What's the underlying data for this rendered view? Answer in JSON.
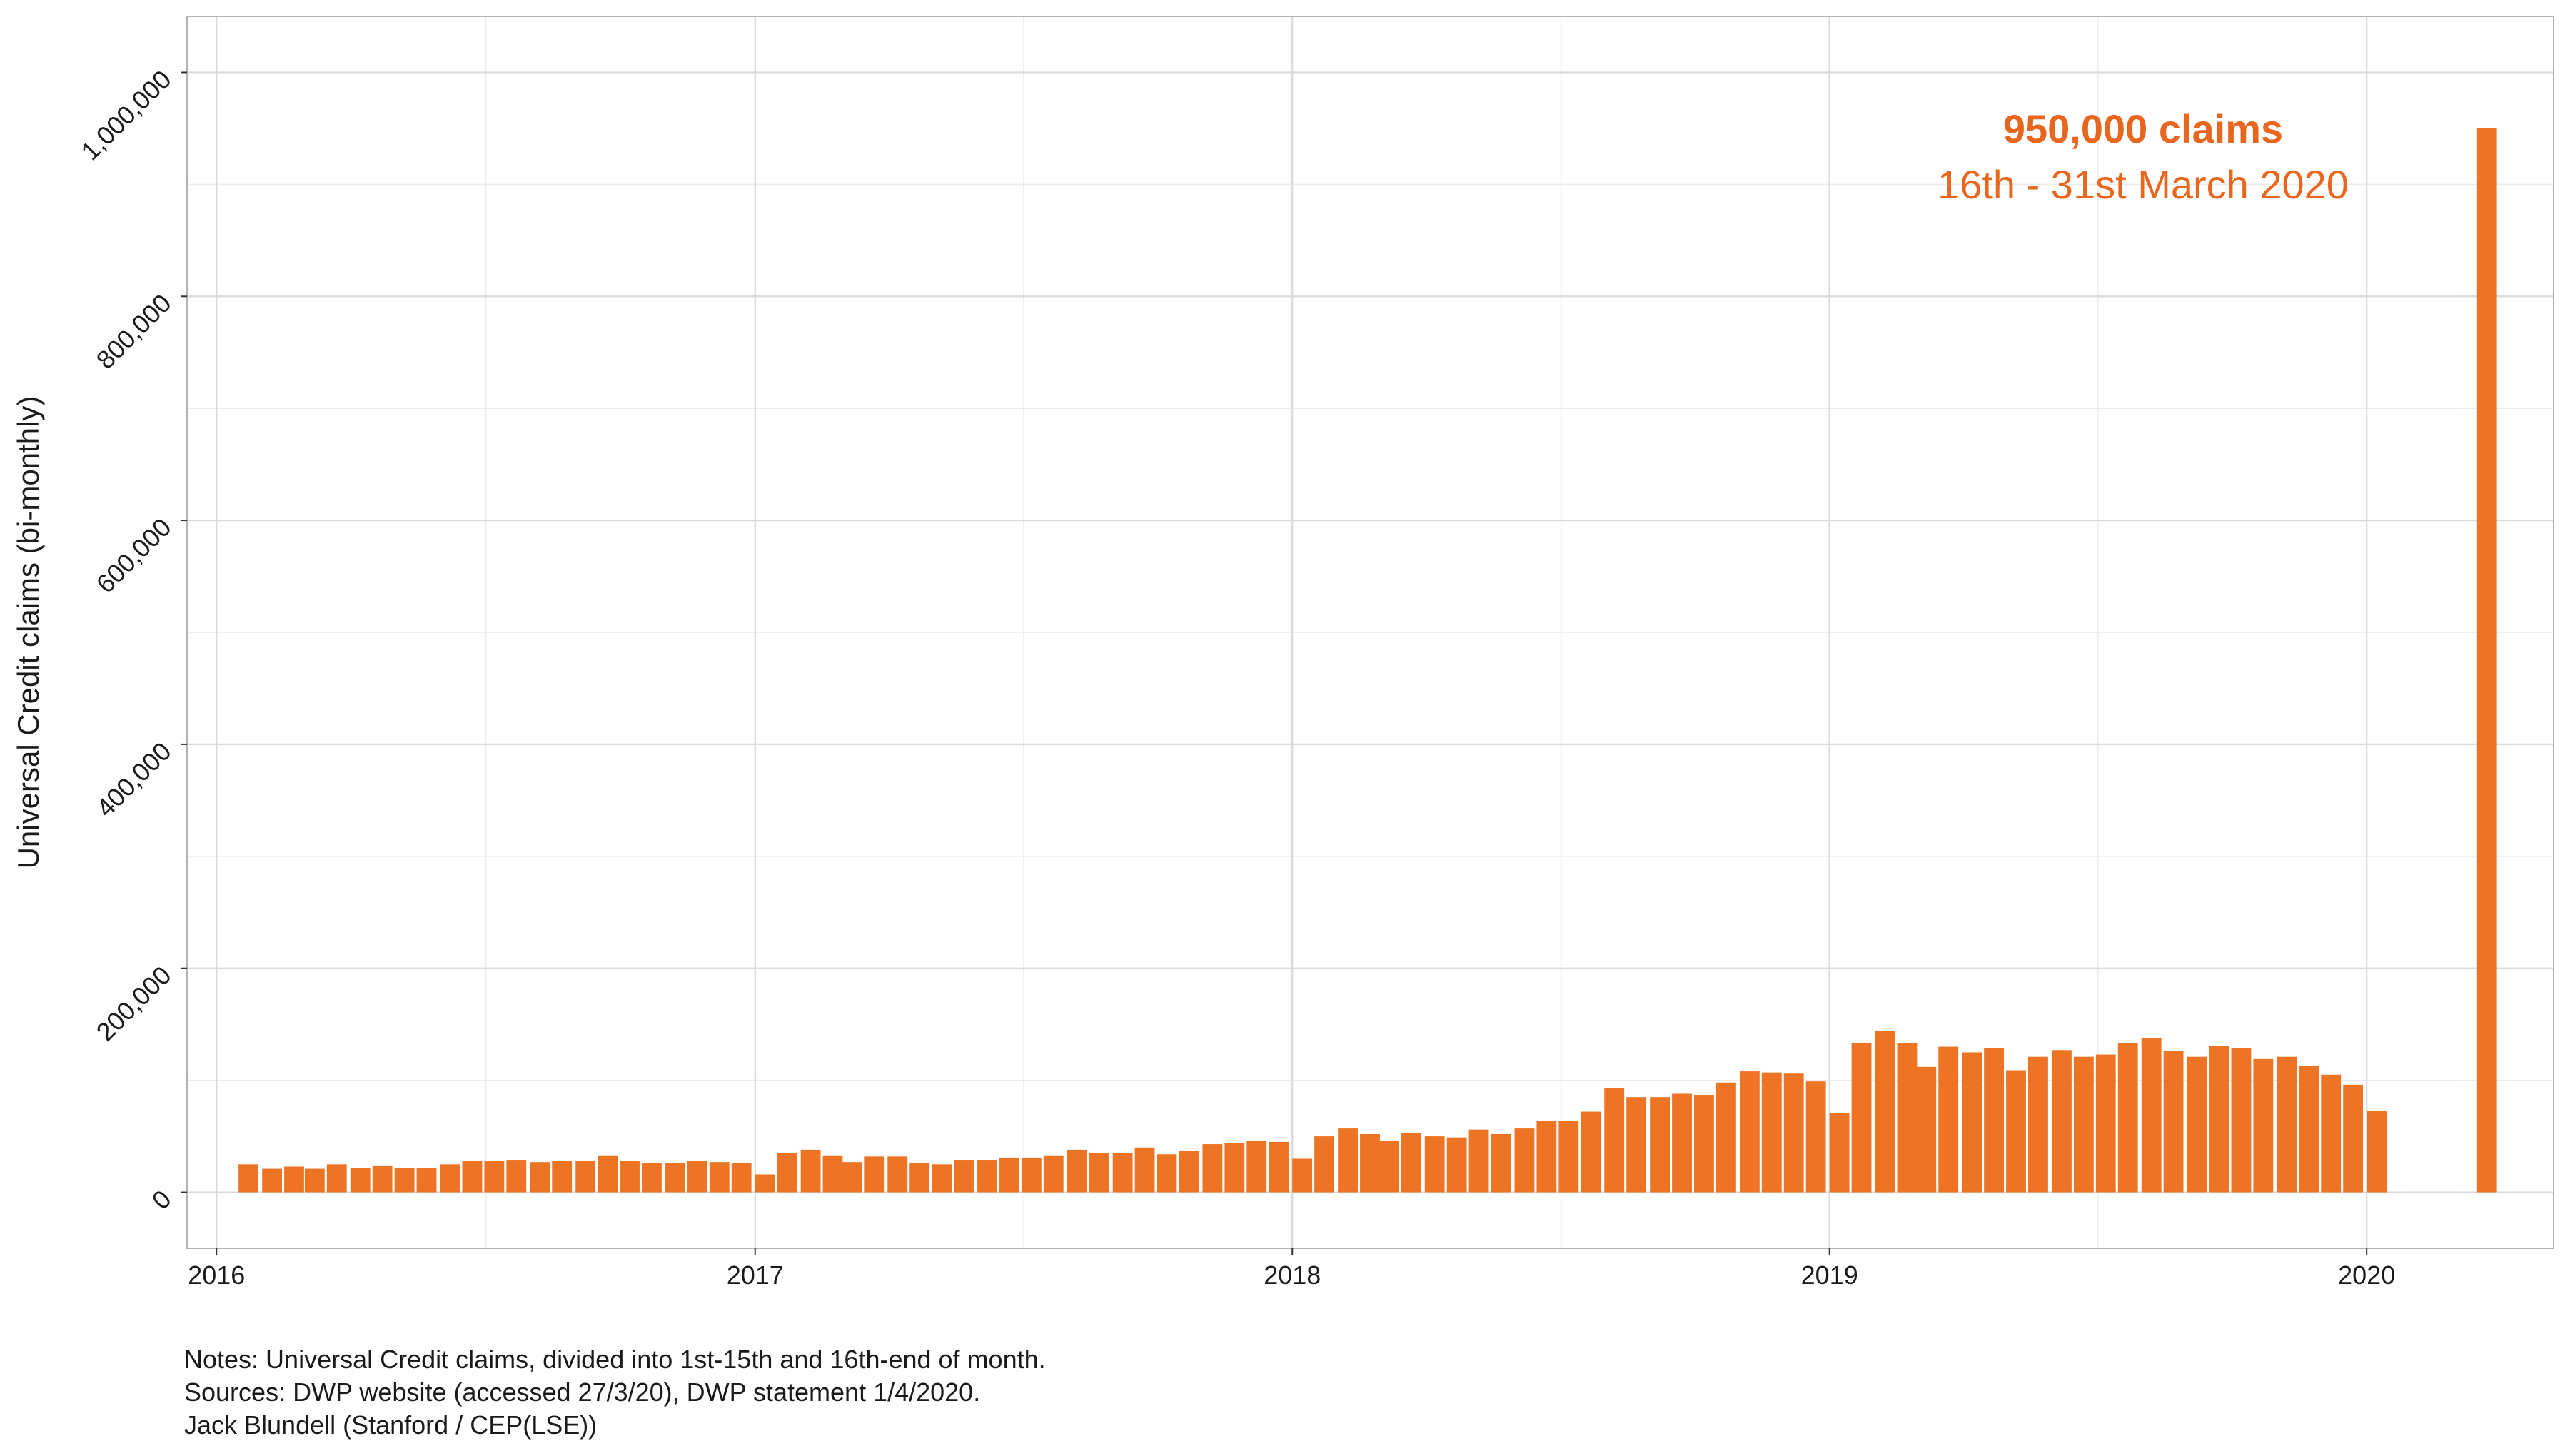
{
  "chart_data": {
    "type": "bar",
    "ylabel": "Universal Credit claims (bi-monthly)",
    "xlabel": "",
    "x_ticks": [
      "2016",
      "2017",
      "2018",
      "2019",
      "2020"
    ],
    "y_ticks": [
      "0",
      "200,000",
      "400,000",
      "600,000",
      "800,000",
      "1,000,000"
    ],
    "xlim": [
      "2015-12-12",
      "2020-05-07"
    ],
    "ylim": [
      -50000,
      1050000
    ],
    "grid": true,
    "bar_color": "#EC7424",
    "bars": [
      {
        "date": "2016-01-16",
        "value": 25000
      },
      {
        "date": "2016-02-01",
        "value": 21000
      },
      {
        "date": "2016-02-16",
        "value": 23000
      },
      {
        "date": "2016-03-01",
        "value": 21000
      },
      {
        "date": "2016-03-16",
        "value": 25000
      },
      {
        "date": "2016-04-01",
        "value": 22000
      },
      {
        "date": "2016-04-16",
        "value": 24000
      },
      {
        "date": "2016-05-01",
        "value": 22000
      },
      {
        "date": "2016-05-16",
        "value": 22000
      },
      {
        "date": "2016-06-01",
        "value": 25000
      },
      {
        "date": "2016-06-16",
        "value": 28000
      },
      {
        "date": "2016-07-01",
        "value": 28000
      },
      {
        "date": "2016-07-16",
        "value": 29000
      },
      {
        "date": "2016-08-01",
        "value": 27000
      },
      {
        "date": "2016-08-16",
        "value": 28000
      },
      {
        "date": "2016-09-01",
        "value": 28000
      },
      {
        "date": "2016-09-16",
        "value": 33000
      },
      {
        "date": "2016-10-01",
        "value": 28000
      },
      {
        "date": "2016-10-16",
        "value": 26000
      },
      {
        "date": "2016-11-01",
        "value": 26000
      },
      {
        "date": "2016-11-16",
        "value": 28000
      },
      {
        "date": "2016-12-01",
        "value": 27000
      },
      {
        "date": "2016-12-16",
        "value": 26000
      },
      {
        "date": "2017-01-01",
        "value": 16000
      },
      {
        "date": "2017-01-16",
        "value": 35000
      },
      {
        "date": "2017-02-01",
        "value": 38000
      },
      {
        "date": "2017-02-16",
        "value": 33000
      },
      {
        "date": "2017-03-01",
        "value": 27000
      },
      {
        "date": "2017-03-16",
        "value": 32000
      },
      {
        "date": "2017-04-01",
        "value": 32000
      },
      {
        "date": "2017-04-16",
        "value": 26000
      },
      {
        "date": "2017-05-01",
        "value": 25000
      },
      {
        "date": "2017-05-16",
        "value": 29000
      },
      {
        "date": "2017-06-01",
        "value": 29000
      },
      {
        "date": "2017-06-16",
        "value": 31000
      },
      {
        "date": "2017-07-01",
        "value": 31000
      },
      {
        "date": "2017-07-16",
        "value": 33000
      },
      {
        "date": "2017-08-01",
        "value": 38000
      },
      {
        "date": "2017-08-16",
        "value": 35000
      },
      {
        "date": "2017-09-01",
        "value": 35000
      },
      {
        "date": "2017-09-16",
        "value": 40000
      },
      {
        "date": "2017-10-01",
        "value": 34000
      },
      {
        "date": "2017-10-16",
        "value": 37000
      },
      {
        "date": "2017-11-01",
        "value": 43000
      },
      {
        "date": "2017-11-16",
        "value": 44000
      },
      {
        "date": "2017-12-01",
        "value": 46000
      },
      {
        "date": "2017-12-16",
        "value": 45000
      },
      {
        "date": "2018-01-01",
        "value": 30000
      },
      {
        "date": "2018-01-16",
        "value": 50000
      },
      {
        "date": "2018-02-01",
        "value": 57000
      },
      {
        "date": "2018-02-16",
        "value": 52000
      },
      {
        "date": "2018-03-01",
        "value": 46000
      },
      {
        "date": "2018-03-16",
        "value": 53000
      },
      {
        "date": "2018-04-01",
        "value": 50000
      },
      {
        "date": "2018-04-16",
        "value": 49000
      },
      {
        "date": "2018-05-01",
        "value": 56000
      },
      {
        "date": "2018-05-16",
        "value": 52000
      },
      {
        "date": "2018-06-01",
        "value": 57000
      },
      {
        "date": "2018-06-16",
        "value": 64000
      },
      {
        "date": "2018-07-01",
        "value": 64000
      },
      {
        "date": "2018-07-16",
        "value": 72000
      },
      {
        "date": "2018-08-01",
        "value": 93000
      },
      {
        "date": "2018-08-16",
        "value": 85000
      },
      {
        "date": "2018-09-01",
        "value": 85000
      },
      {
        "date": "2018-09-16",
        "value": 88000
      },
      {
        "date": "2018-10-01",
        "value": 87000
      },
      {
        "date": "2018-10-16",
        "value": 98000
      },
      {
        "date": "2018-11-01",
        "value": 108000
      },
      {
        "date": "2018-11-16",
        "value": 107000
      },
      {
        "date": "2018-12-01",
        "value": 106000
      },
      {
        "date": "2018-12-16",
        "value": 99000
      },
      {
        "date": "2019-01-01",
        "value": 71000
      },
      {
        "date": "2019-01-16",
        "value": 133000
      },
      {
        "date": "2019-02-01",
        "value": 144000
      },
      {
        "date": "2019-02-16",
        "value": 133000
      },
      {
        "date": "2019-03-01",
        "value": 112000
      },
      {
        "date": "2019-03-16",
        "value": 130000
      },
      {
        "date": "2019-04-01",
        "value": 125000
      },
      {
        "date": "2019-04-16",
        "value": 129000
      },
      {
        "date": "2019-05-01",
        "value": 109000
      },
      {
        "date": "2019-05-16",
        "value": 121000
      },
      {
        "date": "2019-06-01",
        "value": 127000
      },
      {
        "date": "2019-06-16",
        "value": 121000
      },
      {
        "date": "2019-07-01",
        "value": 123000
      },
      {
        "date": "2019-07-16",
        "value": 133000
      },
      {
        "date": "2019-08-01",
        "value": 138000
      },
      {
        "date": "2019-08-16",
        "value": 126000
      },
      {
        "date": "2019-09-01",
        "value": 121000
      },
      {
        "date": "2019-09-16",
        "value": 131000
      },
      {
        "date": "2019-10-01",
        "value": 129000
      },
      {
        "date": "2019-10-16",
        "value": 119000
      },
      {
        "date": "2019-11-01",
        "value": 121000
      },
      {
        "date": "2019-11-16",
        "value": 113000
      },
      {
        "date": "2019-12-01",
        "value": 105000
      },
      {
        "date": "2019-12-16",
        "value": 96000
      },
      {
        "date": "2020-01-01",
        "value": 73000
      },
      {
        "date": "2020-03-16",
        "value": 950000
      }
    ],
    "annotations": [
      {
        "text": "950,000 claims",
        "weight": "bold",
        "color": "#E8661E"
      },
      {
        "text": "16th - 31st March 2020",
        "weight": "normal",
        "color": "#E8661E"
      }
    ]
  },
  "notes": [
    "Notes: Universal Credit claims, divided into 1st-15th and 16th-end of month.",
    "Sources: DWP website (accessed 27/3/20), DWP statement 1/4/2020.",
    "Jack Blundell (Stanford / CEP(LSE))"
  ]
}
